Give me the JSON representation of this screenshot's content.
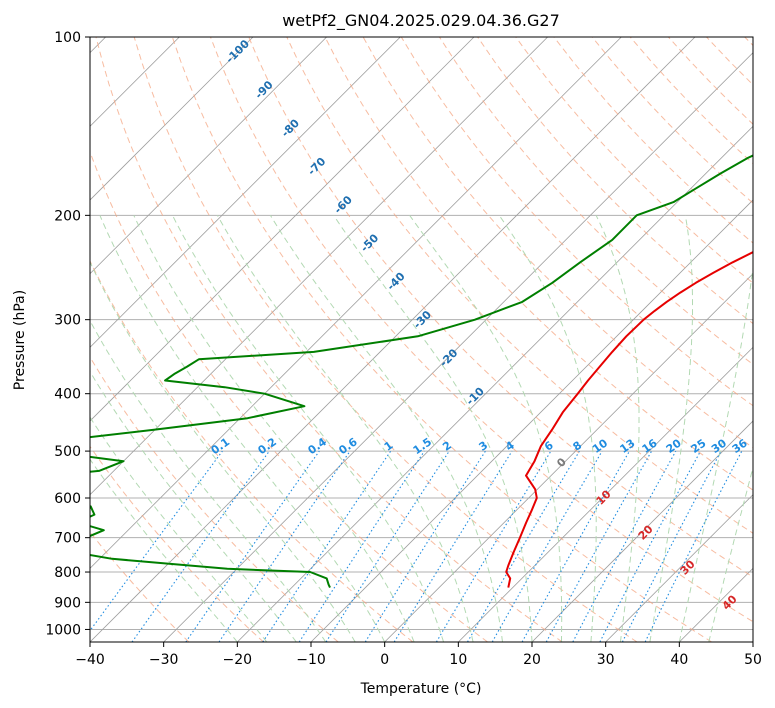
{
  "chart_data": {
    "type": "line",
    "chart_kind": "skew-T log-P diagram",
    "title": "wetPf2_GN04.2025.029.04.36.G27",
    "xlabel": "Temperature (°C)",
    "ylabel": "Pressure (hPa)",
    "xlim": [
      -40,
      50
    ],
    "ylim": [
      1050,
      100
    ],
    "y_scale": "log",
    "x_ticks": [
      -40,
      -30,
      -20,
      -10,
      0,
      10,
      20,
      30,
      40,
      50
    ],
    "y_ticks": [
      100,
      200,
      300,
      400,
      500,
      600,
      700,
      800,
      900,
      1000
    ],
    "grid": true,
    "legend": "none",
    "series": [
      {
        "color": "#e60000",
        "points": [
          [
            100,
            23.3
          ],
          [
            110,
            22.4
          ],
          [
            120,
            21.6
          ],
          [
            130,
            20.0
          ],
          [
            140,
            17.3
          ],
          [
            150,
            14.5
          ],
          [
            160,
            11.8
          ],
          [
            170,
            9.4
          ],
          [
            180,
            7.4
          ],
          [
            190,
            5.3
          ],
          [
            200,
            2.9
          ],
          [
            210,
            0.4
          ],
          [
            220,
            -1.2
          ],
          [
            230,
            -2.8
          ],
          [
            240,
            -4.3
          ],
          [
            250,
            -5.5
          ],
          [
            260,
            -6.5
          ],
          [
            270,
            -7.3
          ],
          [
            280,
            -7.9
          ],
          [
            290,
            -8.3
          ],
          [
            300,
            -8.6
          ],
          [
            320,
            -8.7
          ],
          [
            340,
            -8.5
          ],
          [
            360,
            -8.2
          ],
          [
            380,
            -7.9
          ],
          [
            400,
            -7.5
          ],
          [
            430,
            -7.0
          ],
          [
            460,
            -6.1
          ],
          [
            490,
            -5.4
          ],
          [
            520,
            -4.2
          ],
          [
            550,
            -3.4
          ],
          [
            580,
            -0.3
          ],
          [
            600,
            1.1
          ],
          [
            630,
            2.1
          ],
          [
            660,
            3.0
          ],
          [
            700,
            4.2
          ],
          [
            740,
            5.3
          ],
          [
            780,
            6.4
          ],
          [
            800,
            7.0
          ],
          [
            820,
            8.4
          ],
          [
            850,
            9.4
          ]
        ]
      },
      {
        "color": "#007f00",
        "points": [
          [
            100,
            -2.9
          ],
          [
            110,
            -4.0
          ],
          [
            120,
            -5.5
          ],
          [
            130,
            -8.0
          ],
          [
            140,
            -10.6
          ],
          [
            150,
            -13.9
          ],
          [
            160,
            -16.4
          ],
          [
            170,
            -18.0
          ],
          [
            180,
            -19.3
          ],
          [
            190,
            -20.5
          ],
          [
            200,
            -23.7
          ],
          [
            220,
            -23.7
          ],
          [
            240,
            -25.0
          ],
          [
            260,
            -26.0
          ],
          [
            280,
            -27.5
          ],
          [
            300,
            -31.5
          ],
          [
            320,
            -37.0
          ],
          [
            340,
            -49.0
          ],
          [
            350,
            -63.6
          ],
          [
            360,
            -64.2
          ],
          [
            370,
            -64.9
          ],
          [
            380,
            -65.3
          ],
          [
            390,
            -56.3
          ],
          [
            400,
            -50.0
          ],
          [
            420,
            -42.9
          ],
          [
            440,
            -49.0
          ],
          [
            460,
            -60.0
          ],
          [
            480,
            -71.5
          ],
          [
            500,
            -72.0
          ],
          [
            520,
            -60.0
          ],
          [
            540,
            -62.0
          ],
          [
            560,
            -75.0
          ],
          [
            600,
            -73.2
          ],
          [
            620,
            -58.3
          ],
          [
            640,
            -56.7
          ],
          [
            660,
            -57.9
          ],
          [
            680,
            -53.3
          ],
          [
            700,
            -54.7
          ],
          [
            730,
            -57.9
          ],
          [
            760,
            -48.3
          ],
          [
            790,
            -31.3
          ],
          [
            800,
            -19.6
          ],
          [
            820,
            -16.5
          ],
          [
            840,
            -15.4
          ],
          [
            850,
            -14.8
          ]
        ]
      }
    ],
    "dry_adiabat_labels": [
      "-100",
      "-90",
      "-80",
      "-70",
      "-60",
      "-50",
      "-40",
      "-30",
      "-20",
      "-10"
    ],
    "moist_adiabat_labels": [
      "0",
      "10",
      "20",
      "30",
      "40"
    ],
    "mixing_ratio_labels": [
      "0.1",
      "0.2",
      "0.4",
      "0.6",
      "1",
      "1.5",
      "2",
      "3",
      "4",
      "6",
      "8",
      "10",
      "13",
      "16",
      "20",
      "25",
      "30",
      "36"
    ],
    "colors": {
      "temperature": "#e60000",
      "dewpoint": "#007f00",
      "isotherm": "#9e9e9e",
      "dry_adiabat": "#f4a582",
      "moist_adiabat": "#b3d9b3",
      "mixing_ratio": "#1f8ce0",
      "dry_label": "#1f6fb0",
      "moist_label": "#d62828"
    }
  }
}
